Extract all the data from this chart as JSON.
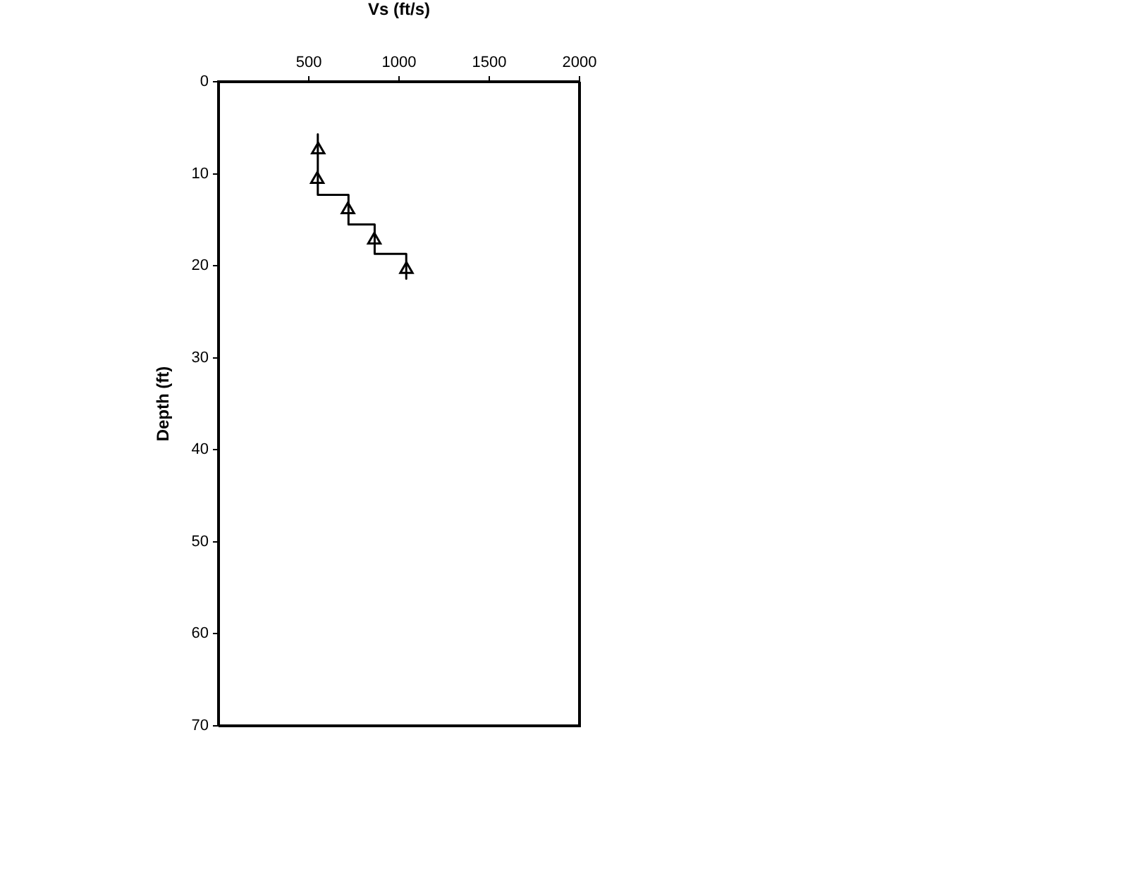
{
  "chart_data": {
    "type": "scatter",
    "xlabel": "Vs (ft/s)",
    "ylabel": "Depth (ft)",
    "xlim": [
      0,
      2000
    ],
    "xticks": [
      500,
      1000,
      1500,
      2000
    ],
    "ylim": [
      70,
      0
    ],
    "yticks": [
      0,
      10,
      20,
      30,
      40,
      50,
      60,
      70
    ],
    "grid": false,
    "legend": false,
    "series": [
      {
        "type": "line",
        "color": "#000000",
        "marker": "none",
        "line_style": "solid",
        "x": [
          550,
          550,
          720,
          720,
          865,
          865,
          1040,
          1040
        ],
        "values": [
          5.7,
          12.3,
          12.3,
          15.5,
          15.5,
          18.7,
          18.7,
          21.4
        ]
      },
      {
        "type": "scatter",
        "color": "#000000",
        "marker": "triangle",
        "x": [
          552,
          547,
          717,
          863,
          1041
        ],
        "values": [
          7.4,
          10.6,
          13.9,
          17.2,
          20.4
        ]
      }
    ]
  }
}
